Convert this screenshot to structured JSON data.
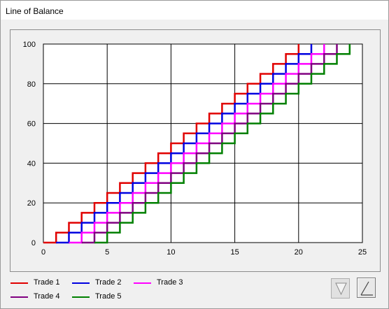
{
  "window": {
    "title": "Line of Balance"
  },
  "chart_data": {
    "type": "line",
    "step": true,
    "xlim": [
      0,
      25
    ],
    "ylim": [
      0,
      100
    ],
    "x_ticks": [
      0,
      5,
      10,
      15,
      20,
      25
    ],
    "y_ticks": [
      0,
      20,
      40,
      60,
      80,
      100
    ],
    "grid": true,
    "legend_position": "bottom-left",
    "step_size": 5,
    "series": [
      {
        "name": "Trade 1",
        "color": "#e00000",
        "start": 1,
        "end": 20
      },
      {
        "name": "Trade 2",
        "color": "#0000e0",
        "start": 2,
        "end": 21
      },
      {
        "name": "Trade 3",
        "color": "#ff00ff",
        "start": 3,
        "end": 22
      },
      {
        "name": "Trade 4",
        "color": "#800080",
        "start": 4,
        "end": 23
      },
      {
        "name": "Trade 5",
        "color": "#008000",
        "start": 5,
        "end": 24
      }
    ]
  },
  "toolbar": {
    "buttons": [
      {
        "icon": "triangle-down-icon",
        "pressed": false
      },
      {
        "icon": "diagonal-line-icon",
        "pressed": true
      }
    ]
  }
}
